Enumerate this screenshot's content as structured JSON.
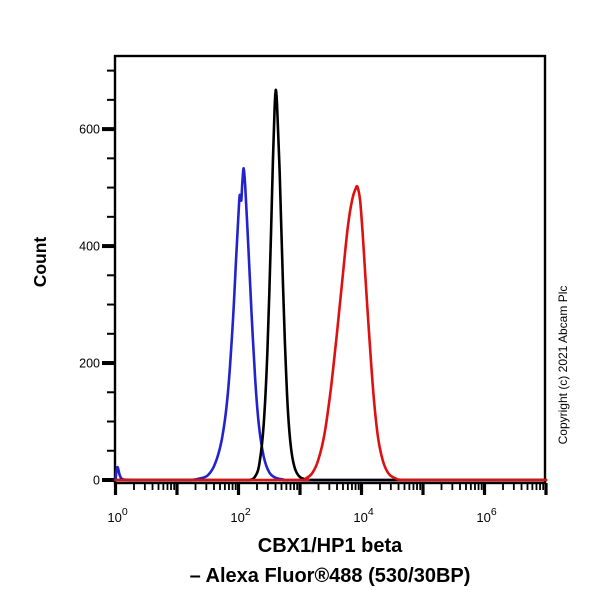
{
  "figure": {
    "y_axis_label": "Count",
    "copyright": "Copyright (c) 2021 Abcam Plc",
    "title_line1": "CBX1/HP1 beta",
    "title_line2": "– Alexa Fluor®488 (530/30BP)"
  },
  "chart_data": {
    "type": "line",
    "subtype": "flow-cytometry-histogram-overlay",
    "title": "CBX1/HP1 beta – Alexa Fluor®488 (530/30BP)",
    "ylabel": "Count",
    "x_scale": "log10",
    "grid": false,
    "legend": "none",
    "x_axis": {
      "lim_log10": [
        0,
        7
      ],
      "major_tick_decades": [
        0,
        1,
        2,
        3,
        4,
        5,
        6,
        7
      ],
      "minor_tick_mantissas": [
        2,
        3,
        4,
        5,
        6,
        7,
        8,
        9
      ],
      "minor_tick_decades": [
        0,
        1,
        2,
        3,
        4,
        5,
        6
      ],
      "labeled_decades": [
        {
          "decade": 0,
          "base": "10",
          "exponent": "0"
        },
        {
          "decade": 2,
          "base": "10",
          "exponent": "2"
        },
        {
          "decade": 4,
          "base": "10",
          "exponent": "4"
        },
        {
          "decade": 6,
          "base": "10",
          "exponent": "6"
        }
      ]
    },
    "y_axis": {
      "lim": [
        0,
        725
      ],
      "major_ticks": [
        {
          "value": 0,
          "label": "0"
        },
        {
          "value": 200,
          "label": "200"
        },
        {
          "value": 400,
          "label": "400"
        },
        {
          "value": 600,
          "label": "600"
        }
      ],
      "minor_tick_step": 50,
      "minor_tick_max": 700
    },
    "series": [
      {
        "name": "blue-histogram",
        "color": "#2323cd",
        "peak": {
          "x_log10": 2.085,
          "x_value": 120,
          "count": 533
        },
        "points_log10x_count": [
          [
            0,
            0
          ],
          [
            0.03,
            22
          ],
          [
            0.07,
            8
          ],
          [
            0.12,
            1
          ],
          [
            0.3,
            0
          ],
          [
            0.8,
            0
          ],
          [
            1.2,
            0
          ],
          [
            1.35,
            2
          ],
          [
            1.5,
            8
          ],
          [
            1.62,
            28
          ],
          [
            1.73,
            70
          ],
          [
            1.82,
            140
          ],
          [
            1.9,
            255
          ],
          [
            1.96,
            375
          ],
          [
            2.0,
            455
          ],
          [
            2.02,
            487
          ],
          [
            2.045,
            478
          ],
          [
            2.06,
            505
          ],
          [
            2.085,
            533
          ],
          [
            2.11,
            500
          ],
          [
            2.16,
            400
          ],
          [
            2.21,
            290
          ],
          [
            2.27,
            175
          ],
          [
            2.33,
            95
          ],
          [
            2.41,
            40
          ],
          [
            2.5,
            13
          ],
          [
            2.6,
            4
          ],
          [
            2.72,
            1
          ],
          [
            2.85,
            0
          ],
          [
            4.0,
            0
          ],
          [
            5.5,
            0
          ],
          [
            7.0,
            0
          ]
        ]
      },
      {
        "name": "black-histogram",
        "color": "#000000",
        "peak": {
          "x_log10": 2.605,
          "x_value": 400,
          "count": 667
        },
        "points_log10x_count": [
          [
            0,
            0
          ],
          [
            1.0,
            0
          ],
          [
            2.0,
            0
          ],
          [
            2.18,
            0
          ],
          [
            2.27,
            6
          ],
          [
            2.34,
            28
          ],
          [
            2.41,
            95
          ],
          [
            2.47,
            220
          ],
          [
            2.52,
            390
          ],
          [
            2.56,
            545
          ],
          [
            2.585,
            630
          ],
          [
            2.605,
            667
          ],
          [
            2.63,
            635
          ],
          [
            2.67,
            525
          ],
          [
            2.71,
            380
          ],
          [
            2.755,
            235
          ],
          [
            2.8,
            125
          ],
          [
            2.85,
            58
          ],
          [
            2.91,
            22
          ],
          [
            2.98,
            7
          ],
          [
            3.06,
            2
          ],
          [
            3.15,
            0
          ],
          [
            4.5,
            0
          ],
          [
            7.0,
            0
          ]
        ]
      },
      {
        "name": "red-histogram",
        "color": "#dd1111",
        "peak": {
          "x_log10": 3.935,
          "x_value": 8600,
          "count": 501
        },
        "points_log10x_count": [
          [
            0,
            0
          ],
          [
            1.5,
            0
          ],
          [
            3.0,
            0
          ],
          [
            3.1,
            3
          ],
          [
            3.2,
            12
          ],
          [
            3.3,
            35
          ],
          [
            3.4,
            80
          ],
          [
            3.5,
            155
          ],
          [
            3.6,
            250
          ],
          [
            3.7,
            355
          ],
          [
            3.78,
            435
          ],
          [
            3.85,
            480
          ],
          [
            3.9,
            497
          ],
          [
            3.935,
            501
          ],
          [
            3.98,
            475
          ],
          [
            4.03,
            405
          ],
          [
            4.08,
            320
          ],
          [
            4.14,
            225
          ],
          [
            4.2,
            140
          ],
          [
            4.27,
            72
          ],
          [
            4.35,
            32
          ],
          [
            4.44,
            11
          ],
          [
            4.55,
            3
          ],
          [
            4.7,
            0
          ],
          [
            5.5,
            0
          ],
          [
            7.0,
            0
          ]
        ]
      }
    ]
  }
}
